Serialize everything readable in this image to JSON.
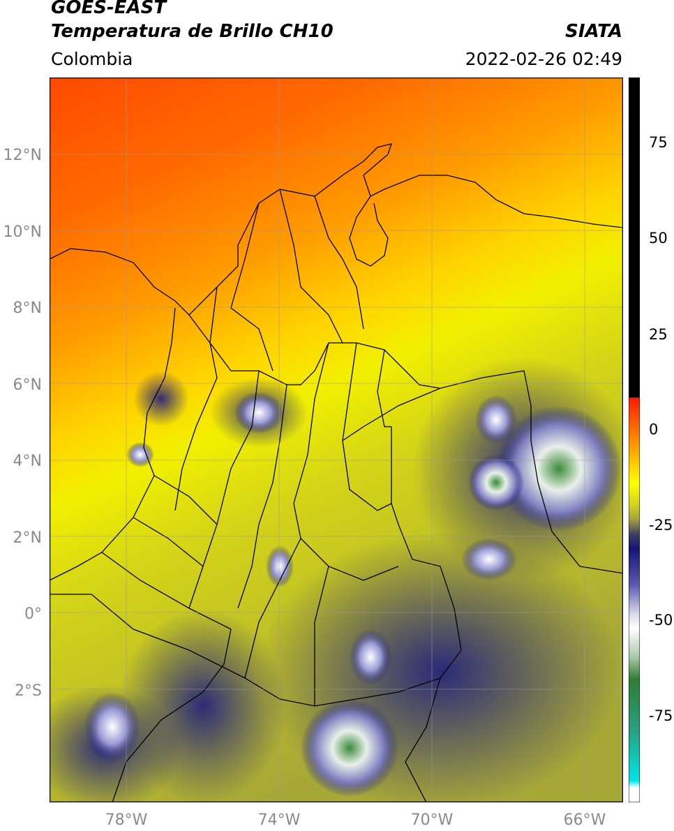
{
  "header": {
    "satellite": "GOES-EAST",
    "product": "Temperatura de Brillo CH10",
    "region": "Colombia",
    "agency": "SIATA",
    "datetime": "2022-02-26 02:49"
  },
  "map": {
    "lon_range": [
      -80,
      -65
    ],
    "lat_range": [
      -5,
      14
    ],
    "lat_ticks": [
      "12°N",
      "10°N",
      "8°N",
      "6°N",
      "4°N",
      "2°N",
      "0°",
      "2°S"
    ],
    "lon_ticks": [
      "78°W",
      "74°W",
      "70°W",
      "66°W"
    ]
  },
  "colorbar": {
    "range": [
      -95,
      90
    ],
    "ticks": [
      "75",
      "50",
      "25",
      "0",
      "-25",
      "-50",
      "-75"
    ],
    "colors": {
      "hot": "#000000",
      "red": "#ff1a00",
      "orange": "#ff8c00",
      "yellow": "#ffff00",
      "olive": "#c8c832",
      "navy": "#141478",
      "white": "#ffffff",
      "green": "#2e7d32",
      "cyan": "#00e5e5"
    }
  }
}
